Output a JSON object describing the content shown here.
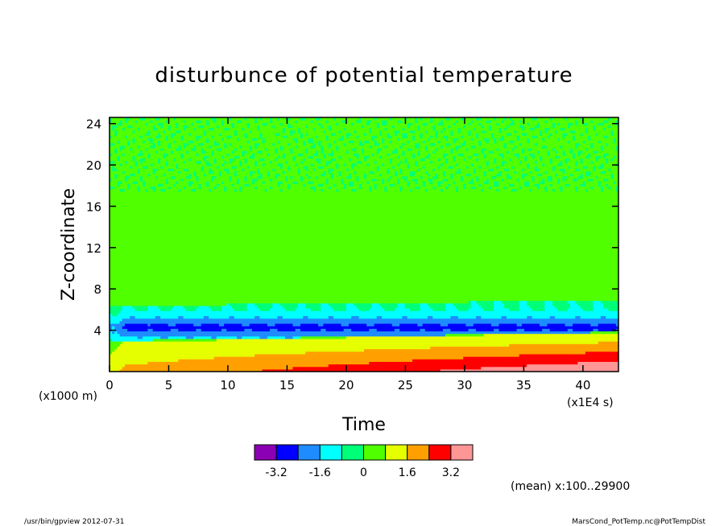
{
  "chart_data": {
    "type": "heatmap",
    "title": "disturbunce of potential temperature",
    "xlabel": "Time",
    "ylabel": "Z-coordinate",
    "x_unit": "(x1E4 s)",
    "y_unit": "(x1000 m)",
    "xlim": [
      0,
      43
    ],
    "ylim": [
      0,
      24.6
    ],
    "x_ticks": [
      "0",
      "5",
      "10",
      "15",
      "20",
      "25",
      "30",
      "35",
      "40"
    ],
    "y_ticks": [
      "4",
      "8",
      "12",
      "16",
      "20",
      "24"
    ],
    "x_tick_values": [
      0,
      5,
      10,
      15,
      20,
      25,
      30,
      35,
      40
    ],
    "y_tick_values": [
      4,
      8,
      12,
      16,
      20,
      24
    ],
    "colorbar": {
      "levels": [
        -4.0,
        -3.2,
        -2.4,
        -1.6,
        -0.8,
        0,
        0.8,
        1.6,
        2.4,
        3.2,
        4.0
      ],
      "colors": [
        "#8c00b4",
        "#0000ff",
        "#1e8cff",
        "#00ffff",
        "#00ff78",
        "#50ff00",
        "#e6ff00",
        "#ffa000",
        "#ff0000",
        "#ff9696"
      ],
      "tick_labels": [
        "-3.2",
        "-1.6",
        "0",
        "1.6",
        "3.2"
      ],
      "tick_values": [
        -3.2,
        -1.6,
        0,
        1.6,
        3.2
      ]
    },
    "field_description_bands": [
      {
        "z_range": [
          0,
          1.4
        ],
        "value_range": [
          1.6,
          4.0
        ],
        "trend": "increasing with time"
      },
      {
        "z_range": [
          1.4,
          3.5
        ],
        "value_range": [
          0.8,
          2.4
        ]
      },
      {
        "z_range": [
          3.5,
          6.8
        ],
        "value_range": [
          -2.4,
          -0.8
        ],
        "minimum": -3.2
      },
      {
        "z_range": [
          6.8,
          24.6
        ],
        "value_range": [
          0,
          0.8
        ]
      }
    ]
  },
  "annotations": {
    "mean_note": "(mean) x:100..29900",
    "footer_left": "/usr/bin/gpview   2012-07-31",
    "footer_right": "MarsCond_PotTemp.nc@PotTempDist"
  }
}
